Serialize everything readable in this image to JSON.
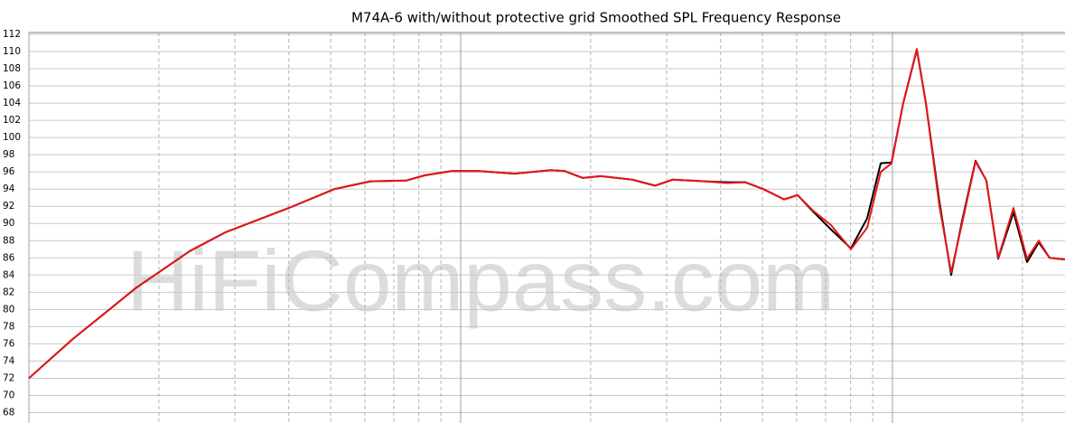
{
  "chart_data": {
    "type": "line",
    "title": "M74A-6 with/without protective grid  Smoothed SPL Frequency Response",
    "watermark": "HiFiCompass.com",
    "x": [
      100,
      126,
      177,
      236,
      286,
      400,
      510,
      618,
      749,
      825,
      953,
      1101,
      1335,
      1619,
      1740,
      1916,
      2110,
      2498,
      2818,
      3101,
      3672,
      4142,
      4560,
      5021,
      5610,
      6030,
      6545,
      7208,
      8014,
      8738,
      9394,
      9952,
      10593,
      11391,
      11953,
      12850,
      13677,
      14495,
      15574,
      16501,
      17575,
      19070,
      20500,
      21825,
      23120,
      25100
    ],
    "series": [
      {
        "color": "#000000",
        "values": [
          72,
          76.5,
          82.5,
          86.8,
          89,
          91.8,
          94,
          94.9,
          95,
          95.6,
          96.1,
          96.1,
          95.8,
          96.2,
          96.1,
          95.3,
          95.5,
          95.1,
          94.4,
          95.1,
          94.9,
          94.8,
          94.8,
          94,
          92.8,
          93.3,
          91.4,
          89.3,
          87.1,
          90.6,
          97,
          97.1,
          104,
          110.2,
          104,
          92.5,
          84,
          90.3,
          97.3,
          95,
          85.9,
          91.3,
          85.5,
          87.8,
          86,
          85.8
        ]
      },
      {
        "color": "#e8141b",
        "values": [
          72,
          76.5,
          82.5,
          86.8,
          89,
          91.8,
          94,
          94.9,
          95,
          95.6,
          96.1,
          96.1,
          95.8,
          96.2,
          96.1,
          95.3,
          95.5,
          95.1,
          94.4,
          95.1,
          94.9,
          94.7,
          94.8,
          94,
          92.8,
          93.3,
          91.5,
          89.8,
          87,
          89.5,
          96,
          97,
          104,
          110.3,
          104,
          92,
          84.3,
          90,
          97.2,
          95,
          86,
          91.8,
          85.9,
          88,
          86,
          85.8
        ]
      }
    ],
    "xscale": "log",
    "xlim": [
      100,
      25100
    ],
    "xticks": [
      100,
      200,
      300,
      400,
      500,
      600,
      700,
      800,
      900,
      1000,
      2000,
      3000,
      4000,
      5000,
      6000,
      7000,
      8000,
      9000,
      10000,
      20000
    ],
    "ylim": [
      67,
      112
    ],
    "yticks": [
      68,
      70,
      72,
      74,
      76,
      78,
      80,
      82,
      84,
      86,
      88,
      90,
      92,
      94,
      96,
      98,
      100,
      102,
      104,
      106,
      108,
      110,
      112
    ],
    "grid": true
  }
}
